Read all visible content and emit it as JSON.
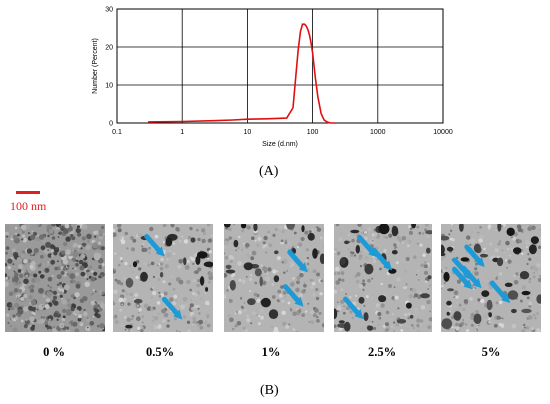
{
  "chart_data": {
    "type": "line",
    "xscale": "log",
    "xlim": [
      0.1,
      10000
    ],
    "ylim": [
      0,
      30
    ],
    "xlabel": "Size (d.nm)",
    "ylabel": "Number (Percent)",
    "xticks": [
      "0.1",
      "1",
      "10",
      "100",
      "1000",
      "10000"
    ],
    "yticks": [
      "0",
      "10",
      "20",
      "30"
    ],
    "grid": true,
    "color": "#e01010",
    "series": [
      {
        "x": [
          0.3,
          1,
          3,
          6,
          10,
          20,
          40,
          50,
          55,
          60,
          65,
          70,
          75,
          80,
          85,
          90,
          95,
          100,
          110,
          120,
          135,
          150,
          170,
          190,
          220
        ],
        "y": [
          0.3,
          0.4,
          0.6,
          0.8,
          1.0,
          1.1,
          1.3,
          4.0,
          12.0,
          19.0,
          24.0,
          26.0,
          26.0,
          25.5,
          24.5,
          23.0,
          21.0,
          18.5,
          12.0,
          7.0,
          2.5,
          0.8,
          0.2,
          0.0,
          0.0
        ]
      }
    ]
  },
  "figure": {
    "label_a": "(A)",
    "label_b": "(B)",
    "scalebar": "100 nm",
    "panels": [
      {
        "label": "0 %",
        "arrows": 0
      },
      {
        "label": "0.5%",
        "arrows": 2
      },
      {
        "label": "1%",
        "arrows": 2
      },
      {
        "label": "2.5%",
        "arrows": 3
      },
      {
        "label": "5%",
        "arrows": 5
      }
    ]
  }
}
